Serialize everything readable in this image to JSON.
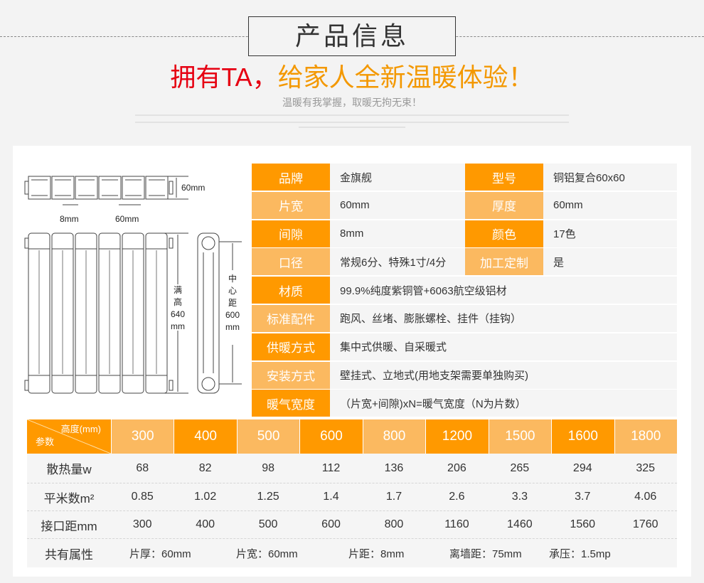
{
  "header": {
    "title": "产品信息",
    "slogan_red": "拥有TA，",
    "slogan_orange": "给家人全新温暖体验！",
    "subtitle": "温暖有我掌握，取暖无拘无束！"
  },
  "diagram": {
    "depth": "60mm",
    "gap": "8mm",
    "width": "60mm",
    "full_height": [
      "满",
      "高",
      "640",
      "mm"
    ],
    "center_distance": [
      "中",
      "心",
      "距",
      "600",
      "mm"
    ]
  },
  "colors": {
    "dark_orange": "#ff9900",
    "light_orange": "#fbb960",
    "slogan_red": "#e60012",
    "slogan_orange": "#f39800"
  },
  "spec": [
    {
      "l1": "品牌",
      "v1": "金旗舰",
      "l2": "型号",
      "v2": "铜铝复合60x60"
    },
    {
      "l1": "片宽",
      "v1": "60mm",
      "l2": "厚度",
      "v2": "60mm"
    },
    {
      "l1": "间隙",
      "v1": "8mm",
      "l2": "颜色",
      "v2": "17色"
    },
    {
      "l1": "口径",
      "v1": "常规6分、特殊1寸/4分",
      "l2": "加工定制",
      "v2": "是"
    },
    {
      "l1": "材质",
      "v1": "99.9%纯度紫铜管+6063航空级铝材"
    },
    {
      "l1": "标准配件",
      "v1": "跑风、丝堵、膨胀螺栓、挂件（挂钩）"
    },
    {
      "l1": "供暖方式",
      "v1": "集中式供暖、自采暖式"
    },
    {
      "l1": "安装方式",
      "v1": "壁挂式、立地式(用地支架需要单独购买)"
    },
    {
      "l1": "暖气宽度",
      "v1": "（片宽+间隙)xN=暖气宽度（N为片数）"
    }
  ],
  "table": {
    "corner_top": "高度(mm)",
    "corner_bottom": "参数",
    "heights": [
      "300",
      "400",
      "500",
      "600",
      "800",
      "1200",
      "1500",
      "1600",
      "1800"
    ],
    "rows": [
      {
        "label": "散热量w",
        "values": [
          "68",
          "82",
          "98",
          "112",
          "136",
          "206",
          "265",
          "294",
          "325"
        ]
      },
      {
        "label": "平米数m²",
        "values": [
          "0.85",
          "1.02",
          "1.25",
          "1.4",
          "1.7",
          "2.6",
          "3.3",
          "3.7",
          "4.06"
        ]
      },
      {
        "label": "接口距mm",
        "values": [
          "300",
          "400",
          "500",
          "600",
          "800",
          "1160",
          "1460",
          "1560",
          "1760"
        ]
      }
    ],
    "common_label": "共有属性",
    "common": [
      "片厚：60mm",
      "片宽：60mm",
      "片距：8mm",
      "离墙距：75mm",
      "承压：1.5mp"
    ]
  }
}
